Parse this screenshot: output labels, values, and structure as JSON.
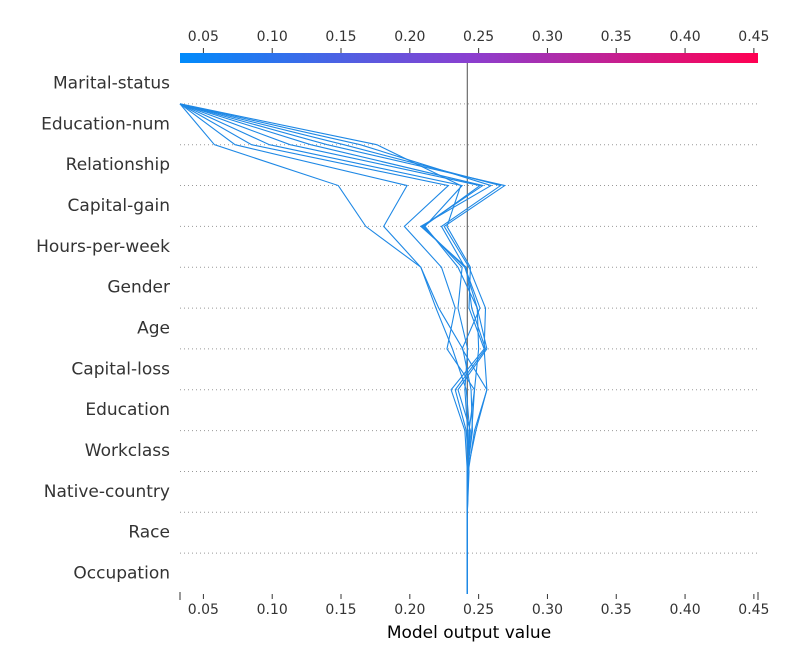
{
  "chart_data": {
    "type": "line",
    "xlabel": "Model output value",
    "xlim": [
      0.033,
      0.453
    ],
    "xticks": [
      "0.05",
      "0.10",
      "0.15",
      "0.20",
      "0.25",
      "0.30",
      "0.35",
      "0.40",
      "0.45"
    ],
    "xtick_values": [
      0.05,
      0.1,
      0.15,
      0.2,
      0.25,
      0.3,
      0.35,
      0.4,
      0.45
    ],
    "base_value": 0.2418,
    "features": [
      "Marital-status",
      "Education-num",
      "Relationship",
      "Capital-gain",
      "Hours-per-week",
      "Gender",
      "Age",
      "Capital-loss",
      "Education",
      "Workclass",
      "Native-country",
      "Race",
      "Occupation"
    ],
    "colorbar": {
      "min_color": "#008bfb",
      "max_color": "#ff0052"
    },
    "series": [
      {
        "values": [
          0.2418,
          0.2418,
          0.2418,
          0.2418,
          0.2455,
          0.2445,
          0.2385,
          0.221,
          0.208,
          0.168,
          0.148,
          0.058,
          0.033
        ]
      },
      {
        "values": [
          0.2418,
          0.2418,
          0.2418,
          0.2418,
          0.2435,
          0.241,
          0.231,
          0.219,
          0.208,
          0.181,
          0.198,
          0.073,
          0.033
        ]
      },
      {
        "values": [
          0.2418,
          0.2418,
          0.2418,
          0.2418,
          0.245,
          0.247,
          0.227,
          0.233,
          0.223,
          0.196,
          0.228,
          0.085,
          0.033
        ]
      },
      {
        "values": [
          0.2418,
          0.2418,
          0.2418,
          0.2418,
          0.243,
          0.247,
          0.25,
          0.249,
          0.235,
          0.211,
          0.238,
          0.098,
          0.033
        ]
      },
      {
        "values": [
          0.2418,
          0.2418,
          0.2418,
          0.2425,
          0.242,
          0.24,
          0.242,
          0.235,
          0.238,
          0.21,
          0.251,
          0.113,
          0.033
        ]
      },
      {
        "values": [
          0.2418,
          0.2418,
          0.2418,
          0.2418,
          0.248,
          0.256,
          0.238,
          0.251,
          0.24,
          0.209,
          0.253,
          0.128,
          0.033
        ]
      },
      {
        "values": [
          0.2418,
          0.2418,
          0.2418,
          0.2425,
          0.247,
          0.256,
          0.254,
          0.255,
          0.243,
          0.225,
          0.269,
          0.14,
          0.033
        ]
      },
      {
        "values": [
          0.2418,
          0.2418,
          0.2418,
          0.2418,
          0.244,
          0.235,
          0.256,
          0.249,
          0.24,
          0.223,
          0.266,
          0.152,
          0.033
        ]
      },
      {
        "values": [
          0.2418,
          0.2418,
          0.2418,
          0.243,
          0.241,
          0.233,
          0.255,
          0.245,
          0.241,
          0.208,
          0.259,
          0.164,
          0.033
        ]
      },
      {
        "values": [
          0.2418,
          0.2418,
          0.2418,
          0.2418,
          0.24,
          0.23,
          0.254,
          0.243,
          0.244,
          0.227,
          0.237,
          0.176,
          0.033
        ]
      }
    ]
  }
}
